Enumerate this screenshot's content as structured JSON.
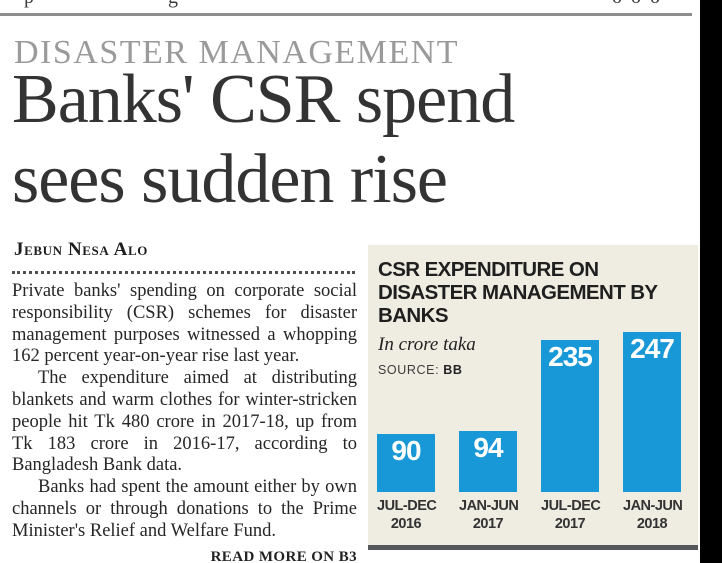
{
  "masthead": {
    "cropped_fragments": [
      "p",
      "g",
      "o  o  o"
    ]
  },
  "article": {
    "kicker": "DISASTER MANAGEMENT",
    "headline_line1": "Banks' CSR spend",
    "headline_line2": "sees sudden rise",
    "byline": "Jebun Nesa Alo",
    "paragraphs": [
      "Private banks' spending on corporate social responsibility (CSR) schemes for disaster management purposes witnessed a whopping 162 percent year-on-year rise last year.",
      "The expenditure aimed at distributing blankets and warm clothes for winter-stricken people hit Tk 480 crore in 2017-18, up from Tk 183 crore in 2016-17, according to Bangladesh Bank data.",
      "Banks had spent the amount either by own channels or through donations to the Prime Minister's Relief and Welfare Fund."
    ],
    "read_more": "READ MORE ON B3"
  },
  "chart_data": {
    "type": "bar",
    "title": "CSR EXPENDITURE ON DISASTER MANAGEMENT BY BANKS",
    "unit_note": "In crore taka",
    "source_label": "SOURCE:",
    "source_value": "BB",
    "categories": [
      "JUL-DEC 2016",
      "JAN-JUN 2017",
      "JUL-DEC 2017",
      "JAN-JUN 2018"
    ],
    "values": [
      90,
      94,
      235,
      247
    ],
    "ylim": [
      0,
      250
    ],
    "grid": false,
    "legend_position": "none",
    "bar_color": "#1898d6",
    "value_label_color": "#ffffff",
    "panel_bg": "#efece2"
  }
}
